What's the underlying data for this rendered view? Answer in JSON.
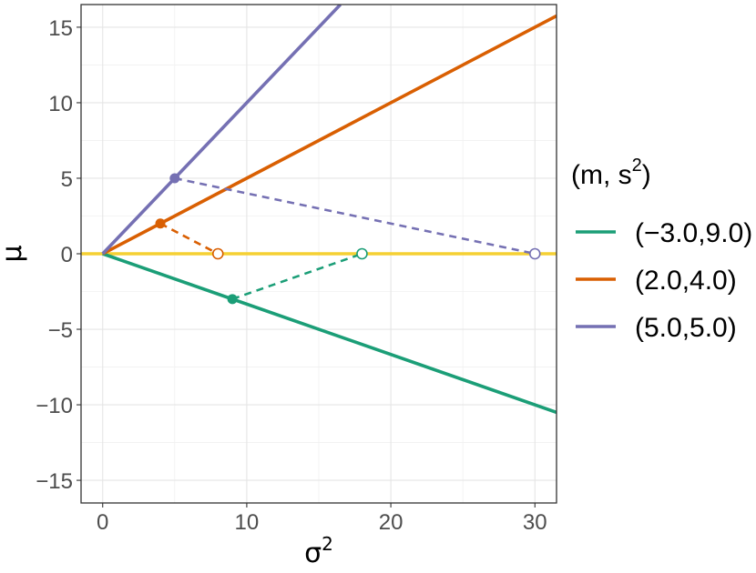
{
  "chart_data": {
    "type": "line",
    "xlabel": "σ",
    "xlabel_sup": "2",
    "ylabel": "μ",
    "xlim": [
      -1.5,
      31.5
    ],
    "ylim": [
      -16.5,
      16.5
    ],
    "x_ticks": [
      0,
      10,
      20,
      30
    ],
    "x_tick_labels": [
      "0",
      "10",
      "20",
      "30"
    ],
    "y_ticks": [
      -15,
      -10,
      -5,
      0,
      5,
      10,
      15
    ],
    "y_tick_labels": [
      "−15",
      "−10",
      "−5",
      "0",
      "5",
      "10",
      "15"
    ],
    "grid": true,
    "reference_line": {
      "y": 0,
      "color": "#F5D033"
    },
    "legend": {
      "position": "right",
      "title_base": "(m, s",
      "title_sup": "2",
      "title_end": ")"
    },
    "series": [
      {
        "name": "(−3.0,9.0)",
        "color": "#1B9E77",
        "ray_end": [
          31.5,
          -10.5
        ],
        "point": [
          9,
          -3
        ],
        "projection": [
          18,
          0
        ]
      },
      {
        "name": "(2.0,4.0)",
        "color": "#D95F02",
        "ray_end": [
          31.5,
          15.75
        ],
        "point": [
          4,
          2
        ],
        "projection": [
          8,
          0
        ]
      },
      {
        "name": "(5.0,5.0)",
        "color": "#7570B3",
        "ray_end": [
          16.5,
          16.5
        ],
        "point": [
          5,
          5
        ],
        "projection": [
          30,
          0
        ]
      }
    ]
  }
}
